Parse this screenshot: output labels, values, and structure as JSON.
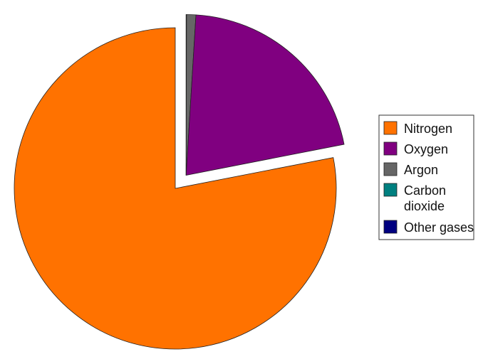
{
  "chart_data": {
    "type": "pie",
    "title": "",
    "categories": [
      "Nitrogen",
      "Oxygen",
      "Argon",
      "Carbon dioxide",
      "Other gases"
    ],
    "values": [
      78.08,
      20.95,
      0.93,
      0.04,
      0.002
    ],
    "colors": [
      "#ff7200",
      "#800080",
      "#666666",
      "#008080",
      "#000080"
    ],
    "exploded": [
      "Oxygen",
      "Argon",
      "Carbon dioxide",
      "Other gases"
    ],
    "legend": {
      "placement": "right",
      "entries": [
        "Nitrogen",
        "Oxygen",
        "Argon",
        "Carbon\ndioxide",
        "Other gases"
      ]
    }
  }
}
